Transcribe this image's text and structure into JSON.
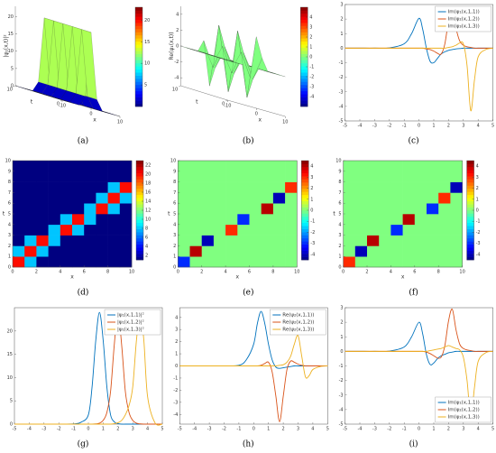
{
  "chart_data": [
    {
      "type": "surface",
      "label": "(a)",
      "zlabel": "|ψ₁(x,t)|²",
      "xlabel": "x",
      "tlabel": "t",
      "x": [
        -10,
        -8,
        -6,
        -4,
        -2,
        0,
        2,
        4,
        6,
        8,
        10
      ],
      "t": [
        0,
        2,
        4,
        6,
        8,
        10
      ],
      "z": [
        [
          0,
          0,
          0,
          0,
          3,
          22,
          3,
          0,
          0,
          0,
          0
        ],
        [
          0,
          0,
          0,
          0,
          3,
          22,
          3,
          0,
          0,
          0,
          0
        ],
        [
          0,
          0,
          0,
          0,
          3,
          22,
          3,
          0,
          0,
          0,
          0
        ],
        [
          0,
          0,
          0,
          0,
          3,
          22,
          3,
          0,
          0,
          0,
          0
        ],
        [
          0,
          0,
          0,
          0,
          3,
          22,
          3,
          0,
          0,
          0,
          0
        ],
        [
          0,
          0,
          0,
          0,
          3,
          22,
          3,
          0,
          0,
          0,
          0
        ]
      ],
      "zlim": [
        0,
        23
      ],
      "zticks": [
        0,
        5,
        10,
        15,
        20
      ],
      "xticks": [
        -10,
        0,
        10
      ],
      "tticks": [
        0,
        10
      ],
      "clim": [
        0,
        23
      ],
      "cticks": [
        5,
        10,
        15,
        20
      ]
    },
    {
      "type": "surface",
      "label": "(b)",
      "zlabel": "Re(ψ₁(x,t))",
      "xlabel": "x",
      "tlabel": "t",
      "x": [
        -10,
        -8,
        -6,
        -4,
        -2,
        0,
        2,
        4,
        6,
        8,
        10
      ],
      "t": [
        0,
        2,
        4,
        6,
        8,
        10
      ],
      "z": [
        [
          0,
          0,
          0,
          0,
          -1.5,
          4,
          1.5,
          0,
          0,
          0,
          0
        ],
        [
          0,
          0,
          0,
          0,
          1.5,
          -4,
          -1.5,
          0,
          0,
          0,
          0
        ],
        [
          0,
          0,
          0,
          0,
          -1.5,
          4,
          1.5,
          0,
          0,
          0,
          0
        ],
        [
          0,
          0,
          0,
          0,
          1.5,
          -4,
          -1.5,
          0,
          0,
          0,
          0
        ],
        [
          0,
          0,
          0,
          0,
          -1.5,
          4,
          1.5,
          0,
          0,
          0,
          0
        ],
        [
          0,
          0,
          0,
          0,
          1.5,
          -4,
          -1.5,
          0,
          0,
          0,
          0
        ]
      ],
      "zlim": [
        -5,
        5
      ],
      "zticks": [
        -4,
        -2,
        0,
        2,
        4
      ],
      "xticks": [
        -10,
        0,
        10
      ],
      "tticks": [
        0,
        10
      ],
      "clim": [
        -5,
        5
      ],
      "cticks": [
        -4,
        -3,
        -2,
        -1,
        0,
        1,
        2,
        3,
        4
      ]
    },
    {
      "type": "line",
      "label": "(c)",
      "legend": "upper right",
      "x": [
        -5,
        -4,
        -3,
        -2,
        -1,
        -0.5,
        0,
        0.25,
        0.5,
        0.75,
        1,
        1.25,
        1.5,
        1.75,
        2,
        2.25,
        2.5,
        2.75,
        3,
        3.25,
        3.5,
        3.75,
        4,
        4.5,
        5
      ],
      "series": [
        {
          "name": "Im(ψ₁(x,1,1))",
          "color": "#0072bd",
          "values": [
            0,
            0,
            0,
            0.02,
            0.3,
            1.0,
            2.05,
            1.3,
            0,
            -0.9,
            -1.0,
            -0.7,
            -0.4,
            -0.25,
            -0.15,
            -0.1,
            -0.05,
            -0.03,
            0,
            0,
            0,
            0,
            0,
            0,
            0
          ]
        },
        {
          "name": "Im(ψ₂(x,1,2))",
          "color": "#d95319",
          "values": [
            0,
            0,
            0,
            0,
            0,
            0,
            0,
            0,
            -0.05,
            -0.1,
            -0.2,
            -0.35,
            -0.4,
            0.3,
            1.9,
            2.8,
            1.4,
            0.5,
            0.2,
            0.1,
            0.05,
            0,
            0,
            0,
            0
          ]
        },
        {
          "name": "Im(ψ₃(x,1,3))",
          "color": "#edb120",
          "values": [
            0,
            0,
            0,
            0,
            0,
            0,
            0,
            0,
            0,
            0,
            0,
            0,
            0,
            0,
            0.05,
            0.1,
            0.2,
            0.35,
            0.3,
            -1.2,
            -4.3,
            -2.2,
            -0.6,
            -0.1,
            0
          ]
        }
      ],
      "xlim": [
        -5,
        5
      ],
      "xticks": [
        -5,
        -4,
        -3,
        -2,
        -1,
        0,
        1,
        2,
        3,
        4,
        5
      ],
      "ylim": [
        -5,
        3
      ],
      "yticks": [
        -5,
        -4,
        -3,
        -2,
        -1,
        0,
        1,
        2,
        3
      ]
    },
    {
      "type": "heatmap",
      "label": "(d)",
      "xlabel": "x",
      "ylabel": "t",
      "z": [
        [
          20,
          8,
          1,
          1,
          1,
          1,
          1,
          1,
          1,
          1
        ],
        [
          8,
          20,
          8,
          1,
          1,
          1,
          1,
          1,
          1,
          1
        ],
        [
          1,
          8,
          20,
          8,
          1,
          1,
          1,
          1,
          1,
          1
        ],
        [
          1,
          1,
          1,
          8,
          20,
          8,
          1,
          1,
          1,
          1
        ],
        [
          1,
          1,
          1,
          1,
          8,
          20,
          8,
          1,
          1,
          1
        ],
        [
          1,
          1,
          1,
          1,
          1,
          1,
          8,
          20,
          8,
          1
        ],
        [
          1,
          1,
          1,
          1,
          1,
          1,
          1,
          8,
          20,
          8
        ],
        [
          1,
          1,
          1,
          1,
          1,
          1,
          1,
          1,
          8,
          20
        ],
        [
          1,
          1,
          1,
          1,
          1,
          1,
          1,
          1,
          1,
          1
        ],
        [
          1,
          1,
          1,
          1,
          1,
          1,
          1,
          1,
          1,
          1
        ]
      ],
      "xlim": [
        0,
        10
      ],
      "ylim": [
        0,
        10
      ],
      "xticks": [
        0,
        2,
        4,
        6,
        8,
        10
      ],
      "yticks": [
        0,
        1,
        2,
        3,
        4,
        5,
        6,
        7,
        8,
        9,
        10
      ],
      "clim": [
        1,
        23
      ],
      "cticks": [
        2,
        4,
        6,
        8,
        10,
        12,
        14,
        16,
        18,
        20,
        22
      ]
    },
    {
      "type": "heatmap",
      "label": "(e)",
      "xlabel": "x",
      "ylabel": "t",
      "z": [
        [
          -3,
          0,
          0,
          0,
          0,
          0,
          0,
          0,
          0,
          0
        ],
        [
          0,
          4,
          0,
          0,
          0,
          0,
          0,
          0,
          0,
          0
        ],
        [
          0,
          0,
          -4,
          0,
          0,
          0,
          0,
          0,
          0,
          0
        ],
        [
          0,
          0,
          0,
          0,
          3,
          0,
          0,
          0,
          0,
          0
        ],
        [
          0,
          0,
          0,
          0,
          0,
          -3,
          0,
          0,
          0,
          0
        ],
        [
          0,
          0,
          0,
          0,
          0,
          0,
          0,
          4,
          0,
          0
        ],
        [
          0,
          0,
          0,
          0,
          0,
          0,
          0,
          0,
          -4,
          0
        ],
        [
          0,
          0,
          0,
          0,
          0,
          0,
          0,
          0,
          0,
          3
        ],
        [
          0,
          0,
          0,
          0,
          0,
          0,
          0,
          0,
          0,
          0
        ],
        [
          0,
          0,
          0,
          0,
          0,
          0,
          0,
          0,
          0,
          0
        ]
      ],
      "xlim": [
        0,
        10
      ],
      "ylim": [
        0,
        10
      ],
      "xticks": [
        0,
        2,
        4,
        6,
        8,
        10
      ],
      "yticks": [
        0,
        1,
        2,
        3,
        4,
        5,
        6,
        7,
        8,
        9,
        10
      ],
      "clim": [
        -4.5,
        4.5
      ],
      "cticks": [
        -4,
        -3,
        -2,
        -1,
        0,
        1,
        2,
        3,
        4
      ]
    },
    {
      "type": "heatmap",
      "label": "(f)",
      "xlabel": "x",
      "ylabel": "t",
      "z": [
        [
          3,
          0,
          0,
          0,
          0,
          0,
          0,
          0,
          0,
          0
        ],
        [
          0,
          -4,
          0,
          0,
          0,
          0,
          0,
          0,
          0,
          0
        ],
        [
          0,
          0,
          4,
          0,
          0,
          0,
          0,
          0,
          0,
          0
        ],
        [
          0,
          0,
          0,
          0,
          -3,
          0,
          0,
          0,
          0,
          0
        ],
        [
          0,
          0,
          0,
          0,
          0,
          4,
          0,
          0,
          0,
          0
        ],
        [
          0,
          0,
          0,
          0,
          0,
          0,
          0,
          -3,
          0,
          0
        ],
        [
          0,
          0,
          0,
          0,
          0,
          0,
          0,
          0,
          3,
          0
        ],
        [
          0,
          0,
          0,
          0,
          0,
          0,
          0,
          0,
          0,
          -4
        ],
        [
          0,
          0,
          0,
          0,
          0,
          0,
          0,
          0,
          0,
          0
        ],
        [
          0,
          0,
          0,
          0,
          0,
          0,
          0,
          0,
          0,
          0
        ]
      ],
      "xlim": [
        0,
        10
      ],
      "ylim": [
        0,
        10
      ],
      "xticks": [
        0,
        2,
        4,
        6,
        8,
        10
      ],
      "yticks": [
        0,
        1,
        2,
        3,
        4,
        5,
        6,
        7,
        8,
        9,
        10
      ],
      "clim": [
        -4.5,
        4.5
      ],
      "cticks": [
        -4,
        -3,
        -2,
        -1,
        0,
        1,
        2,
        3,
        4
      ]
    },
    {
      "type": "line",
      "label": "(g)",
      "legend": "upper right",
      "x": [
        -5,
        -4,
        -3,
        -2,
        -1,
        -0.5,
        0,
        0.25,
        0.5,
        0.75,
        1,
        1.25,
        1.5,
        1.75,
        2,
        2.25,
        2.5,
        2.75,
        3,
        3.25,
        3.5,
        3.75,
        4,
        4.5,
        5
      ],
      "series": [
        {
          "name": "|ψ₁(x,1,1)|²",
          "color": "#0072bd",
          "values": [
            0,
            0,
            0,
            0,
            0.05,
            0.4,
            2,
            8,
            18,
            24,
            18,
            8,
            2,
            0.5,
            0.1,
            0,
            0,
            0,
            0,
            0,
            0,
            0,
            0,
            0,
            0
          ]
        },
        {
          "name": "|ψ₁(x,1,2)|²",
          "color": "#d95319",
          "values": [
            0,
            0,
            0,
            0,
            0,
            0,
            0,
            0,
            0.05,
            0.2,
            0.8,
            2.5,
            7,
            17,
            24,
            17,
            7,
            2.5,
            0.8,
            0.2,
            0.05,
            0,
            0,
            0,
            0
          ]
        },
        {
          "name": "|ψ₁(x,1,3)|²",
          "color": "#edb120",
          "values": [
            0,
            0,
            0,
            0,
            0,
            0,
            0,
            0,
            0,
            0,
            0,
            0,
            0,
            0.1,
            0.3,
            0.8,
            2,
            4,
            8,
            18,
            24,
            18,
            6,
            0.3,
            0
          ]
        }
      ],
      "xlim": [
        -5,
        5
      ],
      "xticks": [
        -5,
        -4,
        -3,
        -2,
        -1,
        0,
        1,
        2,
        3,
        4,
        5
      ],
      "ylim": [
        0,
        25
      ],
      "yticks": [
        0,
        5,
        10,
        15,
        20
      ]
    },
    {
      "type": "line",
      "label": "(h)",
      "legend": "upper right",
      "x": [
        -5,
        -4,
        -3,
        -2,
        -1,
        -0.5,
        0,
        0.25,
        0.5,
        0.75,
        1,
        1.25,
        1.5,
        1.75,
        2,
        2.25,
        2.5,
        2.75,
        3,
        3.25,
        3.5,
        3.75,
        4,
        4.5,
        5
      ],
      "series": [
        {
          "name": "Re(ψ₂(x,1,1))",
          "color": "#0072bd",
          "values": [
            0,
            0,
            0,
            0,
            0.05,
            0.5,
            1.8,
            3.5,
            4.5,
            3.5,
            1.8,
            0.5,
            -0.1,
            -0.2,
            -0.15,
            -0.1,
            -0.05,
            0,
            0,
            0,
            0,
            0,
            0,
            0,
            0
          ]
        },
        {
          "name": "Re(ψ₂(x,1,2))",
          "color": "#d95319",
          "values": [
            0,
            0,
            0,
            0,
            0,
            0,
            0,
            0,
            0.05,
            0.2,
            0.3,
            -0.5,
            -2.5,
            -4.6,
            -2.5,
            -0.3,
            0.4,
            0.3,
            0.15,
            0.05,
            0,
            0,
            0,
            0,
            0
          ]
        },
        {
          "name": "Re(ψ₂(x,1,3))",
          "color": "#edb120",
          "values": [
            0,
            0,
            0,
            0,
            0,
            0,
            0,
            0,
            0,
            0,
            0,
            0,
            0,
            0.05,
            0.1,
            0.3,
            0.8,
            1.8,
            2.5,
            0.8,
            -0.9,
            -0.8,
            -0.3,
            -0.05,
            0
          ]
        }
      ],
      "xlim": [
        -5,
        5
      ],
      "xticks": [
        -5,
        -4,
        -3,
        -2,
        -1,
        0,
        1,
        2,
        3,
        4,
        5
      ],
      "ylim": [
        -4.8,
        4.8
      ],
      "yticks": [
        -4,
        -3,
        -2,
        -1,
        0,
        1,
        2,
        3,
        4
      ]
    },
    {
      "type": "line",
      "label": "(i)",
      "legend": "lower right",
      "x": [
        -5,
        -4,
        -3,
        -2,
        -1,
        -0.5,
        0,
        0.25,
        0.5,
        0.75,
        1,
        1.25,
        1.5,
        1.75,
        2,
        2.25,
        2.5,
        2.75,
        3,
        3.25,
        3.5,
        3.75,
        4,
        4.5,
        5
      ],
      "series": [
        {
          "name": "Im(ψ₁(x,1,1))",
          "color": "#0072bd",
          "values": [
            0,
            0,
            0,
            0.02,
            0.3,
            1.0,
            2.0,
            1.2,
            -0.2,
            -0.9,
            -0.8,
            -0.5,
            -0.3,
            -0.2,
            -0.1,
            -0.05,
            0,
            0,
            0,
            0,
            0,
            0,
            0,
            0,
            0
          ]
        },
        {
          "name": "Im(ψ₂(x,1,2))",
          "color": "#d95319",
          "values": [
            0,
            0,
            0,
            0,
            0,
            0,
            0,
            0,
            -0.05,
            -0.15,
            -0.3,
            -0.45,
            -0.4,
            0.4,
            2.1,
            2.9,
            1.5,
            0.5,
            0.2,
            0.1,
            0.05,
            0,
            0,
            0,
            0
          ]
        },
        {
          "name": "Im(ψ₃(x,1,3))",
          "color": "#edb120",
          "values": [
            0,
            0,
            0,
            0,
            0,
            0,
            0,
            0,
            0,
            0.05,
            0.1,
            0.15,
            0.2,
            0.3,
            0.4,
            0.3,
            0.2,
            0.1,
            -0.4,
            -2.0,
            -4.5,
            -2.5,
            -0.7,
            -0.1,
            0
          ]
        }
      ],
      "xlim": [
        -5,
        5
      ],
      "xticks": [
        -5,
        -4,
        -3,
        -2,
        -1,
        0,
        1,
        2,
        3,
        4,
        5
      ],
      "ylim": [
        -5,
        3
      ],
      "yticks": [
        -5,
        -4,
        -3,
        -2,
        -1,
        0,
        1,
        2,
        3
      ]
    }
  ]
}
